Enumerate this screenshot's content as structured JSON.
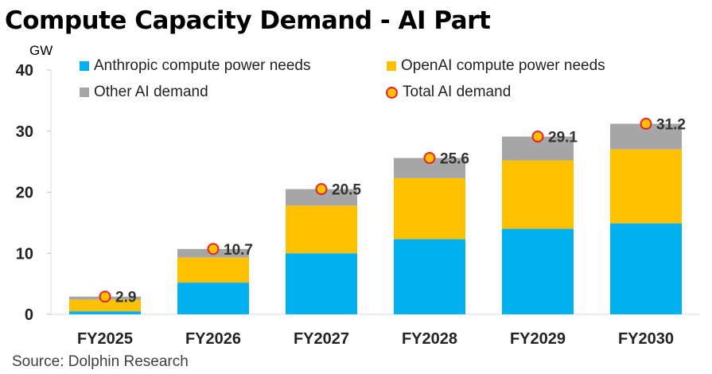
{
  "title": "Compute Capacity Demand - AI Part",
  "unit_label": "GW",
  "source": "Source: Dolphin Research",
  "watermark": "DolphinResearch",
  "legend": [
    {
      "label": "Anthropic compute power needs",
      "color": "#00B0F0",
      "kind": "bar"
    },
    {
      "label": "OpenAI compute power needs",
      "color": "#FFC000",
      "kind": "bar"
    },
    {
      "label": "Other AI demand",
      "color": "#A6A6A6",
      "kind": "bar"
    },
    {
      "label": "Total AI demand",
      "color": "#FFC000",
      "kind": "marker",
      "outline": "#E8202A"
    }
  ],
  "chart_data": {
    "type": "bar",
    "stacked": true,
    "categories": [
      "FY2025",
      "FY2026",
      "FY2027",
      "FY2028",
      "FY2029",
      "FY2030"
    ],
    "series": [
      {
        "name": "Anthropic compute power needs",
        "color": "#00B0F0",
        "values": [
          0.5,
          5.2,
          10.0,
          12.3,
          14.0,
          14.9
        ]
      },
      {
        "name": "OpenAI compute power needs",
        "color": "#FFC000",
        "values": [
          1.9,
          4.1,
          7.8,
          10.0,
          11.2,
          12.1
        ]
      },
      {
        "name": "Other AI demand",
        "color": "#A6A6A6",
        "values": [
          0.5,
          1.4,
          2.7,
          3.3,
          3.9,
          4.2
        ]
      }
    ],
    "totals": {
      "name": "Total AI demand",
      "values": [
        2.9,
        10.7,
        20.5,
        25.6,
        29.1,
        31.2
      ],
      "labels": [
        "2.9",
        "10.7",
        "20.5",
        "25.6",
        "29.1",
        "31.2"
      ]
    },
    "ylabel": "GW",
    "ylim": [
      0,
      40
    ],
    "yticks": [
      0,
      10,
      20,
      30,
      40
    ],
    "grid": false,
    "legend_position": "top"
  }
}
